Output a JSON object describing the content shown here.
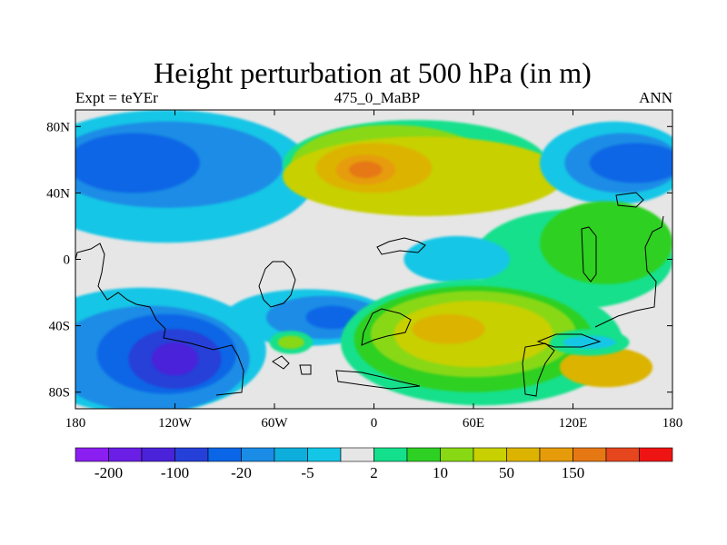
{
  "chart_data": {
    "type": "heatmap",
    "title": "Height perturbation at 500 hPa (in m)",
    "left_subtitle": "Expt = teYEr",
    "center_subtitle": "475_0_MaBP",
    "right_subtitle": "ANN",
    "x_range": [
      -180,
      180
    ],
    "y_range": [
      -90,
      90
    ],
    "x_ticks": [
      {
        "value": -180,
        "label": "180"
      },
      {
        "value": -120,
        "label": "120W"
      },
      {
        "value": -60,
        "label": "60W"
      },
      {
        "value": 0,
        "label": "0"
      },
      {
        "value": 60,
        "label": "60E"
      },
      {
        "value": 120,
        "label": "120E"
      },
      {
        "value": 180,
        "label": "180"
      }
    ],
    "y_ticks": [
      {
        "value": 80,
        "label": "80N"
      },
      {
        "value": 40,
        "label": "40N"
      },
      {
        "value": 0,
        "label": "0"
      },
      {
        "value": -40,
        "label": "40S"
      },
      {
        "value": -80,
        "label": "80S"
      }
    ],
    "colorbar": {
      "colors": [
        "#8b1ef0",
        "#6a1ee6",
        "#4a22d9",
        "#2540d8",
        "#0a66e6",
        "#1a8ce6",
        "#0eaedc",
        "#13c6e6",
        "#e6e6e6",
        "#14e08c",
        "#2ed024",
        "#88d814",
        "#c8d000",
        "#dcb400",
        "#e69c0a",
        "#e67814",
        "#e6461e",
        "#ef1414"
      ],
      "level_labels": [
        {
          "boundary": 1,
          "label": "-200"
        },
        {
          "boundary": 3,
          "label": "-100"
        },
        {
          "boundary": 5,
          "label": "-20"
        },
        {
          "boundary": 7,
          "label": "-5"
        },
        {
          "boundary": 9,
          "label": "2"
        },
        {
          "boundary": 11,
          "label": "10"
        },
        {
          "boundary": 13,
          "label": "50"
        },
        {
          "boundary": 15,
          "label": "150"
        }
      ]
    },
    "field_regions": [
      {
        "color": "#e6e6e6",
        "shape": "rect",
        "lon": -180,
        "lat": 90,
        "width_deg": 360,
        "height_deg": 180
      },
      {
        "color": "#13c6e6",
        "shape": "ellipse",
        "lon": -125,
        "lat": 50,
        "rlon": 90,
        "rlat": 40
      },
      {
        "color": "#1a8ce6",
        "shape": "ellipse",
        "lon": -125,
        "lat": 57,
        "rlon": 70,
        "rlat": 26
      },
      {
        "color": "#0a66e6",
        "shape": "ellipse",
        "lon": -145,
        "lat": 58,
        "rlon": 40,
        "rlat": 18
      },
      {
        "color": "#14e08c",
        "shape": "ellipse",
        "lon": 25,
        "lat": 57,
        "rlon": 80,
        "rlat": 27
      },
      {
        "color": "#88d814",
        "shape": "ellipse",
        "lon": 10,
        "lat": 57,
        "rlon": 60,
        "rlat": 24
      },
      {
        "color": "#c8d000",
        "shape": "ellipse",
        "lon": 30,
        "lat": 50,
        "rlon": 85,
        "rlat": 24
      },
      {
        "color": "#dcb400",
        "shape": "ellipse",
        "lon": 0,
        "lat": 55,
        "rlon": 35,
        "rlat": 15
      },
      {
        "color": "#e69c0a",
        "shape": "ellipse",
        "lon": -5,
        "lat": 54,
        "rlon": 18,
        "rlat": 9
      },
      {
        "color": "#e67814",
        "shape": "ellipse",
        "lon": -5,
        "lat": 54,
        "rlon": 10,
        "rlat": 5
      },
      {
        "color": "#13c6e6",
        "shape": "ellipse",
        "lon": 145,
        "lat": 58,
        "rlon": 45,
        "rlat": 25
      },
      {
        "color": "#1a8ce6",
        "shape": "ellipse",
        "lon": 150,
        "lat": 58,
        "rlon": 35,
        "rlat": 18
      },
      {
        "color": "#0a66e6",
        "shape": "ellipse",
        "lon": 158,
        "lat": 58,
        "rlon": 28,
        "rlat": 12
      },
      {
        "color": "#14e08c",
        "shape": "ellipse",
        "lon": 120,
        "lat": 0,
        "rlon": 60,
        "rlat": 30
      },
      {
        "color": "#2ed024",
        "shape": "ellipse",
        "lon": 140,
        "lat": 10,
        "rlon": 40,
        "rlat": 25
      },
      {
        "color": "#13c6e6",
        "shape": "ellipse",
        "lon": 50,
        "lat": 0,
        "rlon": 32,
        "rlat": 14
      },
      {
        "color": "#13c6e6",
        "shape": "ellipse",
        "lon": -140,
        "lat": -55,
        "rlon": 75,
        "rlat": 38
      },
      {
        "color": "#1a8ce6",
        "shape": "ellipse",
        "lon": -135,
        "lat": -60,
        "rlon": 60,
        "rlat": 32
      },
      {
        "color": "#0a66e6",
        "shape": "ellipse",
        "lon": -125,
        "lat": -57,
        "rlon": 42,
        "rlat": 24
      },
      {
        "color": "#2540d8",
        "shape": "ellipse",
        "lon": -120,
        "lat": -60,
        "rlon": 28,
        "rlat": 18
      },
      {
        "color": "#4a22d9",
        "shape": "ellipse",
        "lon": -120,
        "lat": -60,
        "rlon": 14,
        "rlat": 10
      },
      {
        "color": "#13c6e6",
        "shape": "ellipse",
        "lon": -40,
        "lat": -35,
        "rlon": 50,
        "rlat": 17
      },
      {
        "color": "#1a8ce6",
        "shape": "ellipse",
        "lon": -30,
        "lat": -35,
        "rlon": 35,
        "rlat": 13
      },
      {
        "color": "#0a66e6",
        "shape": "ellipse",
        "lon": -25,
        "lat": -35,
        "rlon": 16,
        "rlat": 7
      },
      {
        "color": "#14e08c",
        "shape": "ellipse",
        "lon": -50,
        "lat": -50,
        "rlon": 13,
        "rlat": 7
      },
      {
        "color": "#88d814",
        "shape": "ellipse",
        "lon": -50,
        "lat": -50,
        "rlon": 8,
        "rlat": 4
      },
      {
        "color": "#14e08c",
        "shape": "ellipse",
        "lon": 65,
        "lat": -50,
        "rlon": 85,
        "rlat": 38
      },
      {
        "color": "#2ed024",
        "shape": "ellipse",
        "lon": 60,
        "lat": -48,
        "rlon": 72,
        "rlat": 32
      },
      {
        "color": "#88d814",
        "shape": "ellipse",
        "lon": 60,
        "lat": -45,
        "rlon": 62,
        "rlat": 26
      },
      {
        "color": "#c8d000",
        "shape": "ellipse",
        "lon": 60,
        "lat": -45,
        "rlon": 48,
        "rlat": 20
      },
      {
        "color": "#dcb400",
        "shape": "ellipse",
        "lon": 45,
        "lat": -42,
        "rlon": 22,
        "rlat": 9
      },
      {
        "color": "#dcb400",
        "shape": "ellipse",
        "lon": 140,
        "lat": -65,
        "rlon": 28,
        "rlat": 12
      },
      {
        "color": "#14e08c",
        "shape": "ellipse",
        "lon": 130,
        "lat": -50,
        "rlon": 24,
        "rlat": 8
      },
      {
        "color": "#13c6e6",
        "shape": "ellipse",
        "lon": 130,
        "lat": -50,
        "rlon": 16,
        "rlat": 4
      }
    ]
  }
}
